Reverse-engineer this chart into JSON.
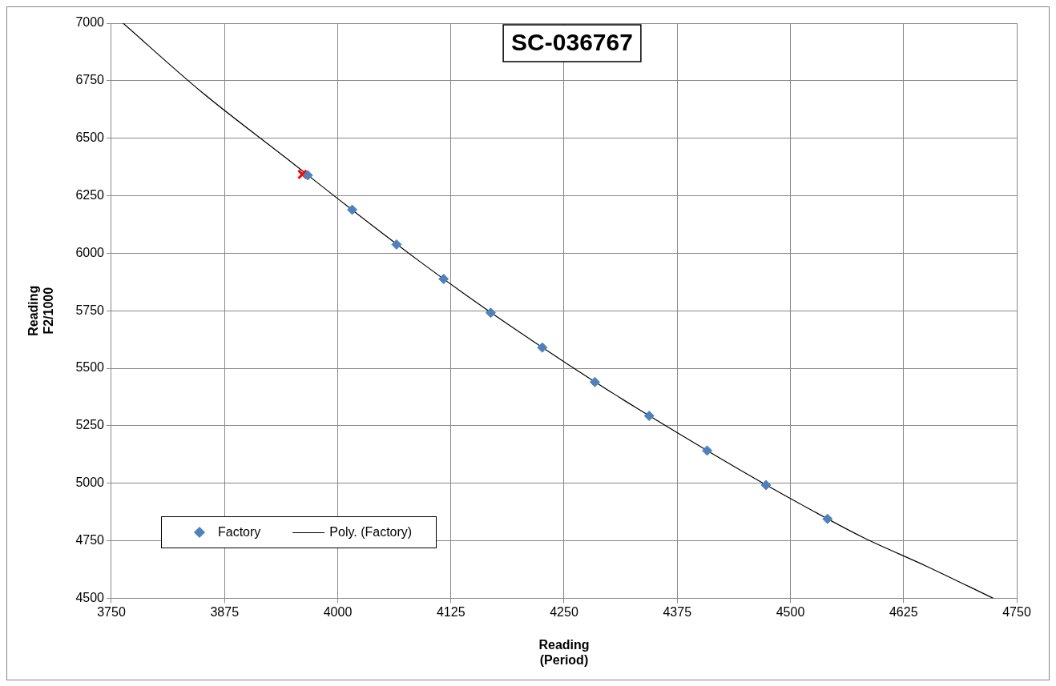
{
  "chart_data": {
    "type": "scatter",
    "title": "SC-036767",
    "xlabel": "Reading\n(Period)",
    "ylabel": "Reading\nF2/1000",
    "xlim": [
      3750,
      4750
    ],
    "xticks": [
      3750,
      3875,
      4000,
      4125,
      4250,
      4375,
      4500,
      4625,
      4750
    ],
    "ylim": [
      4500,
      7000
    ],
    "yticks": [
      4500,
      4750,
      5000,
      5250,
      5500,
      5750,
      6000,
      6250,
      6500,
      6750,
      7000
    ],
    "grid": true,
    "legend": "bottom left",
    "series": [
      {
        "name": "Factory",
        "type": "scatter",
        "marker": "diamond",
        "color": "#4f81bd",
        "x": [
          3967,
          4016,
          4065,
          4117,
          4169,
          4226,
          4284,
          4344,
          4408,
          4473,
          4541
        ],
        "values": [
          6339,
          6189,
          6038,
          5888,
          5741,
          5590,
          5440,
          5293,
          5142,
          4992,
          4845
        ]
      },
      {
        "type": "scatter",
        "marker": "cross",
        "color": "#ff0000",
        "x": [
          3961
        ],
        "values": [
          6343
        ]
      },
      {
        "name": "Poly. (Factory)",
        "type": "line",
        "marker": "none",
        "line_style": "solid",
        "color": "#000000",
        "x": [
          3763,
          3850,
          3940,
          4040,
          4090,
          4140,
          4200,
          4255,
          4315,
          4375,
          4440,
          4510,
          4580,
          4650,
          4724
        ],
        "values": [
          7000,
          6700,
          6423,
          6115,
          5966,
          5823,
          5659,
          5515,
          5364,
          5220,
          5068,
          4912,
          4765,
          4640,
          4500
        ]
      }
    ]
  }
}
